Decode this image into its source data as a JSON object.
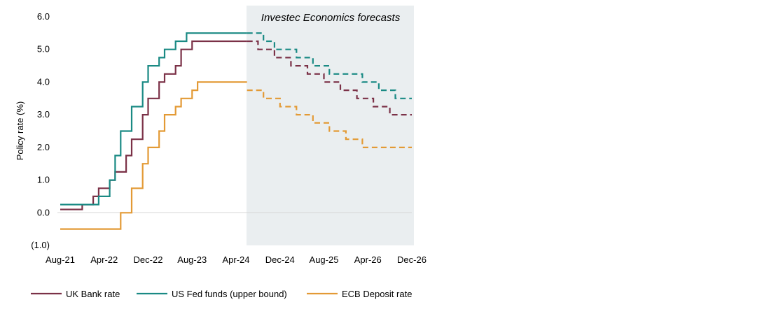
{
  "chart_data": {
    "type": "line",
    "title": "",
    "xlabel": "",
    "ylabel": "Policy rate (%)",
    "ylim": [
      -1.0,
      6.0
    ],
    "yticks": [
      -1.0,
      0.0,
      1.0,
      2.0,
      3.0,
      4.0,
      5.0,
      6.0
    ],
    "ytick_labels": [
      "(1.0)",
      "0.0",
      "1.0",
      "2.0",
      "3.0",
      "4.0",
      "5.0",
      "6.0"
    ],
    "x_start": "Aug-21",
    "x_end": "Dec-26",
    "xticks": [
      "Aug-21",
      "Apr-22",
      "Dec-22",
      "Aug-23",
      "Apr-24",
      "Dec-24",
      "Aug-25",
      "Apr-26",
      "Dec-26"
    ],
    "forecast_region": {
      "label": "Investec Economics forecasts",
      "start": "Jun-24",
      "end": "Dec-26",
      "color": "#eaeef0"
    },
    "grid": false,
    "series": [
      {
        "name": "UK Bank rate",
        "color": "#7b3147",
        "historical_steps": [
          [
            "Aug-21",
            0.1
          ],
          [
            "Dec-21",
            0.25
          ],
          [
            "Feb-22",
            0.5
          ],
          [
            "Mar-22",
            0.75
          ],
          [
            "May-22",
            1.0
          ],
          [
            "Jun-22",
            1.25
          ],
          [
            "Aug-22",
            1.75
          ],
          [
            "Sep-22",
            2.25
          ],
          [
            "Nov-22",
            3.0
          ],
          [
            "Dec-22",
            3.5
          ],
          [
            "Feb-23",
            4.0
          ],
          [
            "Mar-23",
            4.25
          ],
          [
            "May-23",
            4.5
          ],
          [
            "Jun-23",
            5.0
          ],
          [
            "Aug-23",
            5.25
          ],
          [
            "Jun-24",
            5.25
          ]
        ],
        "forecast_steps": [
          [
            "Jun-24",
            5.25
          ],
          [
            "Aug-24",
            5.0
          ],
          [
            "Nov-24",
            4.75
          ],
          [
            "Feb-25",
            4.5
          ],
          [
            "May-25",
            4.25
          ],
          [
            "Aug-25",
            4.0
          ],
          [
            "Nov-25",
            3.75
          ],
          [
            "Feb-26",
            3.5
          ],
          [
            "May-26",
            3.25
          ],
          [
            "Aug-26",
            3.0
          ],
          [
            "Dec-26",
            3.0
          ]
        ]
      },
      {
        "name": "US Fed funds (upper bound)",
        "color": "#1a8a84",
        "historical_steps": [
          [
            "Aug-21",
            0.25
          ],
          [
            "Mar-22",
            0.5
          ],
          [
            "May-22",
            1.0
          ],
          [
            "Jun-22",
            1.75
          ],
          [
            "Jul-22",
            2.5
          ],
          [
            "Sep-22",
            3.25
          ],
          [
            "Nov-22",
            4.0
          ],
          [
            "Dec-22",
            4.5
          ],
          [
            "Feb-23",
            4.75
          ],
          [
            "Mar-23",
            5.0
          ],
          [
            "May-23",
            5.25
          ],
          [
            "Jul-23",
            5.5
          ],
          [
            "Jun-24",
            5.5
          ]
        ],
        "forecast_steps": [
          [
            "Jun-24",
            5.5
          ],
          [
            "Sep-24",
            5.25
          ],
          [
            "Nov-24",
            5.0
          ],
          [
            "Mar-25",
            4.75
          ],
          [
            "Jun-25",
            4.5
          ],
          [
            "Sep-25",
            4.25
          ],
          [
            "Mar-26",
            4.0
          ],
          [
            "Jun-26",
            3.75
          ],
          [
            "Sep-26",
            3.5
          ],
          [
            "Dec-26",
            3.5
          ]
        ]
      },
      {
        "name": "ECB Deposit rate",
        "color": "#e39a35",
        "historical_steps": [
          [
            "Aug-21",
            -0.5
          ],
          [
            "Jul-22",
            0.0
          ],
          [
            "Sep-22",
            0.75
          ],
          [
            "Nov-22",
            1.5
          ],
          [
            "Dec-22",
            2.0
          ],
          [
            "Feb-23",
            2.5
          ],
          [
            "Mar-23",
            3.0
          ],
          [
            "May-23",
            3.25
          ],
          [
            "Jun-23",
            3.5
          ],
          [
            "Aug-23",
            3.75
          ],
          [
            "Sep-23",
            4.0
          ],
          [
            "Jun-24",
            4.0
          ]
        ],
        "forecast_steps": [
          [
            "Jun-24",
            3.75
          ],
          [
            "Sep-24",
            3.5
          ],
          [
            "Dec-24",
            3.25
          ],
          [
            "Mar-25",
            3.0
          ],
          [
            "Jun-25",
            2.75
          ],
          [
            "Sep-25",
            2.5
          ],
          [
            "Dec-25",
            2.25
          ],
          [
            "Mar-26",
            2.0
          ],
          [
            "Dec-26",
            2.0
          ]
        ]
      }
    ],
    "legend": {
      "placement": "bottom"
    }
  }
}
